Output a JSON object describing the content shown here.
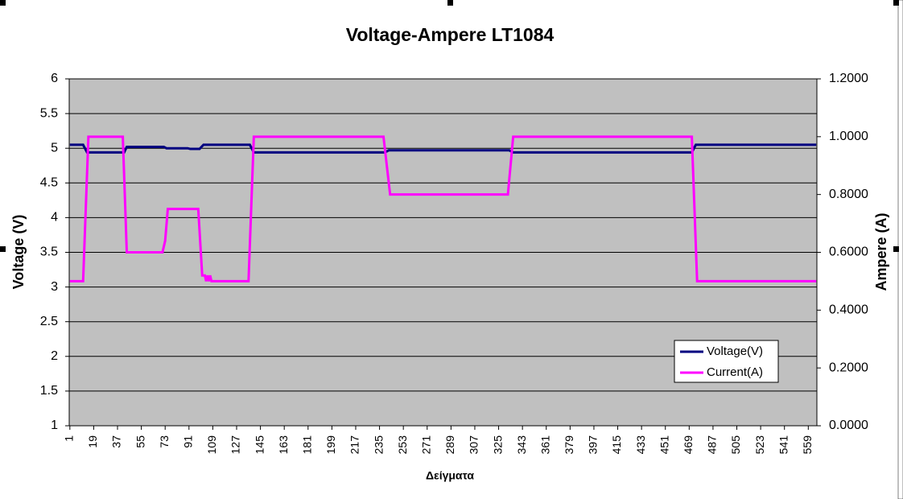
{
  "chart_data": {
    "type": "line",
    "title": "Voltage-Ampere LT1084",
    "x_label": "Δείγματα",
    "y_label": "Voltage (V)",
    "y2_label": "Ampere (A)",
    "xlim": [
      0.5,
      565.5
    ],
    "xticks": [
      1,
      19,
      37,
      55,
      73,
      91,
      109,
      127,
      145,
      163,
      181,
      199,
      217,
      235,
      253,
      271,
      289,
      307,
      325,
      343,
      361,
      379,
      397,
      415,
      433,
      451,
      469,
      487,
      505,
      523,
      541,
      559
    ],
    "ylim": [
      1,
      6
    ],
    "yticks": [
      1,
      1.5,
      2,
      2.5,
      3,
      3.5,
      4,
      4.5,
      5,
      5.5,
      6
    ],
    "y2lim": [
      0,
      1.2
    ],
    "y2ticks": [
      {
        "value": 0,
        "label": "0.0000"
      },
      {
        "value": 0.2,
        "label": "0.2000"
      },
      {
        "value": 0.4,
        "label": "0.4000"
      },
      {
        "value": 0.6,
        "label": "0.6000"
      },
      {
        "value": 0.8,
        "label": "0.8000"
      },
      {
        "value": 1.0,
        "label": "1.0000"
      },
      {
        "value": 1.2,
        "label": "1.2000"
      }
    ],
    "grid": true,
    "legend": "lower right",
    "series": [
      {
        "name": "Voltage(V)",
        "color": "#000080",
        "x": [
          1,
          11,
          14,
          42,
          44,
          72,
          74,
          90,
          92,
          99,
          102,
          137,
          140,
          239,
          242,
          333,
          336,
          471,
          474,
          565
        ],
        "values": [
          5.05,
          5.05,
          4.94,
          4.94,
          5.02,
          5.02,
          5.0,
          5.0,
          4.99,
          4.99,
          5.05,
          5.05,
          4.94,
          4.94,
          4.97,
          4.97,
          4.94,
          4.94,
          5.05,
          5.05
        ]
      },
      {
        "name": "Current(A)",
        "color": "#ff00ff",
        "axis": "y2",
        "x": [
          1,
          11,
          15,
          41,
          44,
          71,
          73,
          75,
          98,
          101,
          103,
          104,
          105,
          106,
          107,
          108,
          136,
          140,
          238,
          243,
          332,
          336,
          471,
          475,
          565
        ],
        "values": [
          0.5,
          0.5,
          1.0,
          1.0,
          0.6,
          0.6,
          0.64,
          0.75,
          0.75,
          0.52,
          0.52,
          0.5,
          0.52,
          0.5,
          0.52,
          0.5,
          0.5,
          1.0,
          1.0,
          0.8,
          0.8,
          1.0,
          1.0,
          0.5,
          0.5
        ]
      }
    ]
  }
}
